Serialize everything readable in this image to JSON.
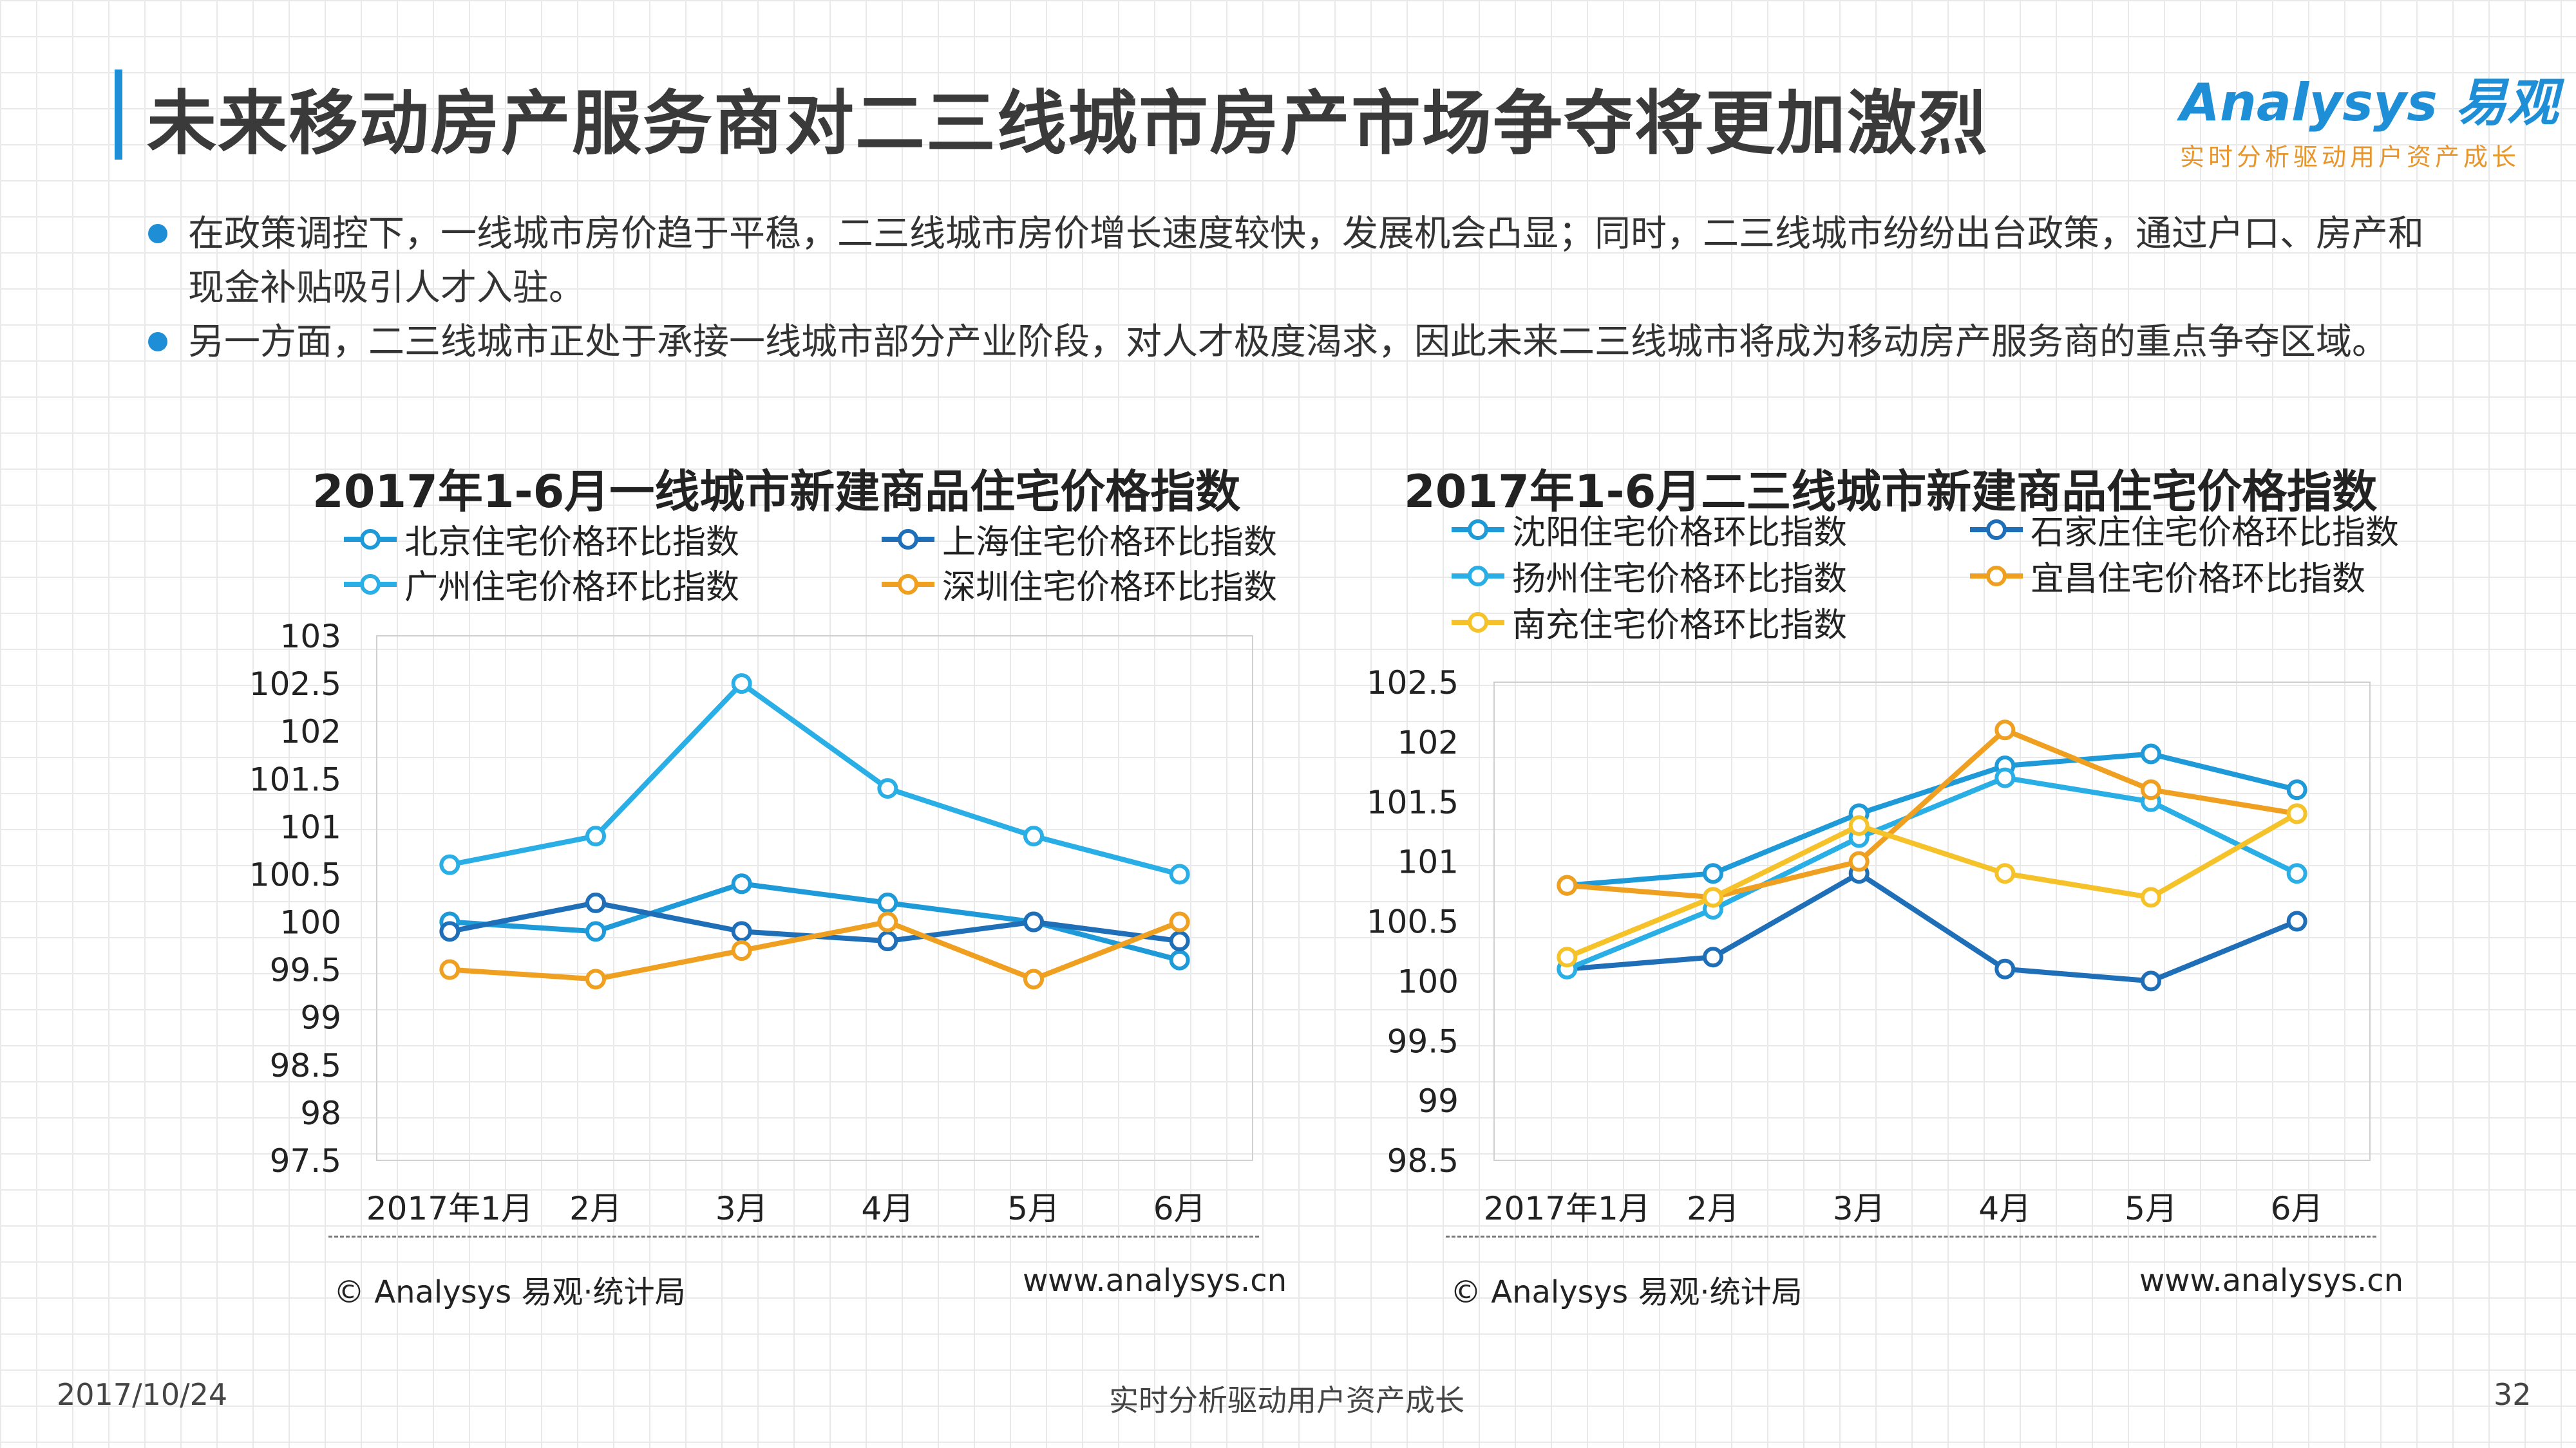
{
  "header": {
    "title": "未来移动房产服务商对二三线城市房产市场争夺将更加激烈",
    "logo_text": "Analysys 易观",
    "logo_slogan": "实时分析驱动用户资产成长"
  },
  "bullets": [
    "在政策调控下，一线城市房价趋于平稳，二三线城市房价增长速度较快，发展机会凸显；同时，二三线城市纷纷出台政策，通过户口、房产和现金补贴吸引人才入驻。",
    "另一方面，二三线城市正处于承接一线城市部分产业阶段，对人才极度渴求，因此未来二三线城市将成为移动房产服务商的重点争夺区域。"
  ],
  "colors": {
    "accent": "#1e8fd6",
    "beijing": "#1e9ad8",
    "shanghai": "#1f6fb8",
    "guangzhou": "#29aee6",
    "shenzhen": "#f0a020",
    "shenyang": "#1e9ad8",
    "shijiazhuang": "#1f6fb8",
    "yangzhou": "#29aee6",
    "yichang": "#f0a020",
    "nanchong": "#f5c22a"
  },
  "chart_data": [
    {
      "type": "line",
      "title": "2017年1-6月一线城市新建商品住宅价格指数",
      "categories": [
        "2017年1月",
        "2月",
        "3月",
        "4月",
        "5月",
        "6月"
      ],
      "ylim": [
        97.5,
        103
      ],
      "yticks": [
        "103",
        "102.5",
        "102",
        "101.5",
        "101",
        "100.5",
        "100",
        "99.5",
        "99",
        "98.5",
        "98",
        "97.5"
      ],
      "series": [
        {
          "name": "北京住宅价格环比指数",
          "color": "#1e9ad8",
          "values": [
            100.0,
            99.9,
            100.4,
            100.2,
            100.0,
            99.6
          ]
        },
        {
          "name": "上海住宅价格环比指数",
          "color": "#1f6fb8",
          "values": [
            99.9,
            100.2,
            99.9,
            99.8,
            100.0,
            99.8
          ]
        },
        {
          "name": "广州住宅价格环比指数",
          "color": "#29aee6",
          "values": [
            100.6,
            100.9,
            102.5,
            101.4,
            100.9,
            100.5
          ]
        },
        {
          "name": "深圳住宅价格环比指数",
          "color": "#f0a020",
          "values": [
            99.5,
            99.4,
            99.7,
            100.0,
            99.4,
            100.0
          ]
        }
      ],
      "source": "© Analysys 易观·统计局",
      "url": "www.analysys.cn"
    },
    {
      "type": "line",
      "title": "2017年1-6月二三线城市新建商品住宅价格指数",
      "categories": [
        "2017年1月",
        "2月",
        "3月",
        "4月",
        "5月",
        "6月"
      ],
      "ylim": [
        98.5,
        102.5
      ],
      "yticks": [
        "102.5",
        "102",
        "101.5",
        "101",
        "100.5",
        "100",
        "99.5",
        "99",
        "98.5"
      ],
      "series": [
        {
          "name": "沈阳住宅价格环比指数",
          "color": "#1e9ad8",
          "values": [
            100.8,
            100.9,
            101.4,
            101.8,
            101.9,
            101.6
          ]
        },
        {
          "name": "石家庄住宅价格环比指数",
          "color": "#1f6fb8",
          "values": [
            100.1,
            100.2,
            100.9,
            100.1,
            100.0,
            100.5
          ]
        },
        {
          "name": "扬州住宅价格环比指数",
          "color": "#29aee6",
          "values": [
            100.1,
            100.6,
            101.2,
            101.7,
            101.5,
            100.9
          ]
        },
        {
          "name": "宜昌住宅价格环比指数",
          "color": "#f0a020",
          "values": [
            100.8,
            100.7,
            101.0,
            102.1,
            101.6,
            101.4
          ]
        },
        {
          "name": "南充住宅价格环比指数",
          "color": "#f5c22a",
          "values": [
            100.2,
            100.7,
            101.3,
            100.9,
            100.7,
            101.4
          ]
        }
      ],
      "source": "© Analysys 易观·统计局",
      "url": "www.analysys.cn"
    }
  ],
  "footer": {
    "date": "2017/10/24",
    "slogan": "实时分析驱动用户资产成长",
    "page": "32"
  }
}
